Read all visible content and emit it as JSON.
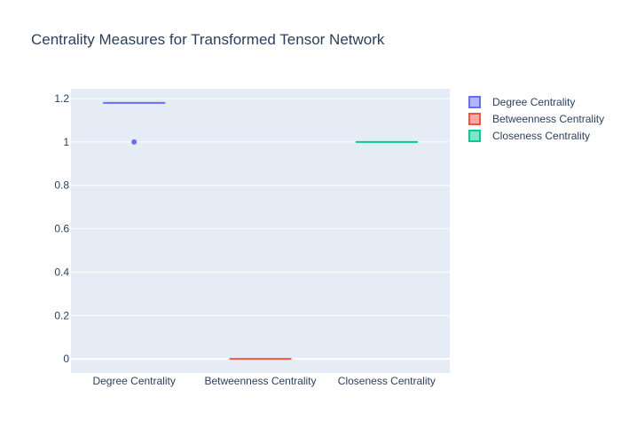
{
  "chart_data": {
    "type": "box",
    "title": "Centrality Measures for Transformed Tensor Network",
    "xlabel": "",
    "ylabel": "",
    "categories": [
      "Degree Centrality",
      "Betweenness Centrality",
      "Closeness Centrality"
    ],
    "ylim": [
      -0.065,
      1.245
    ],
    "yticks": [
      0,
      0.2,
      0.4,
      0.6,
      0.8,
      1,
      1.2
    ],
    "ytick_labels": [
      "0",
      "0.2",
      "0.4",
      "0.6",
      "0.8",
      "1",
      "1.2"
    ],
    "grid": true,
    "legend_position": "top-right",
    "series": [
      {
        "name": "Degree Centrality",
        "color": "#636efa",
        "median": 1.18,
        "outliers": [
          1.0
        ]
      },
      {
        "name": "Betweenness Centrality",
        "color": "#EF553B",
        "median": 0.0,
        "outliers": []
      },
      {
        "name": "Closeness Centrality",
        "color": "#00cc96",
        "median": 1.0,
        "outliers": []
      }
    ]
  }
}
